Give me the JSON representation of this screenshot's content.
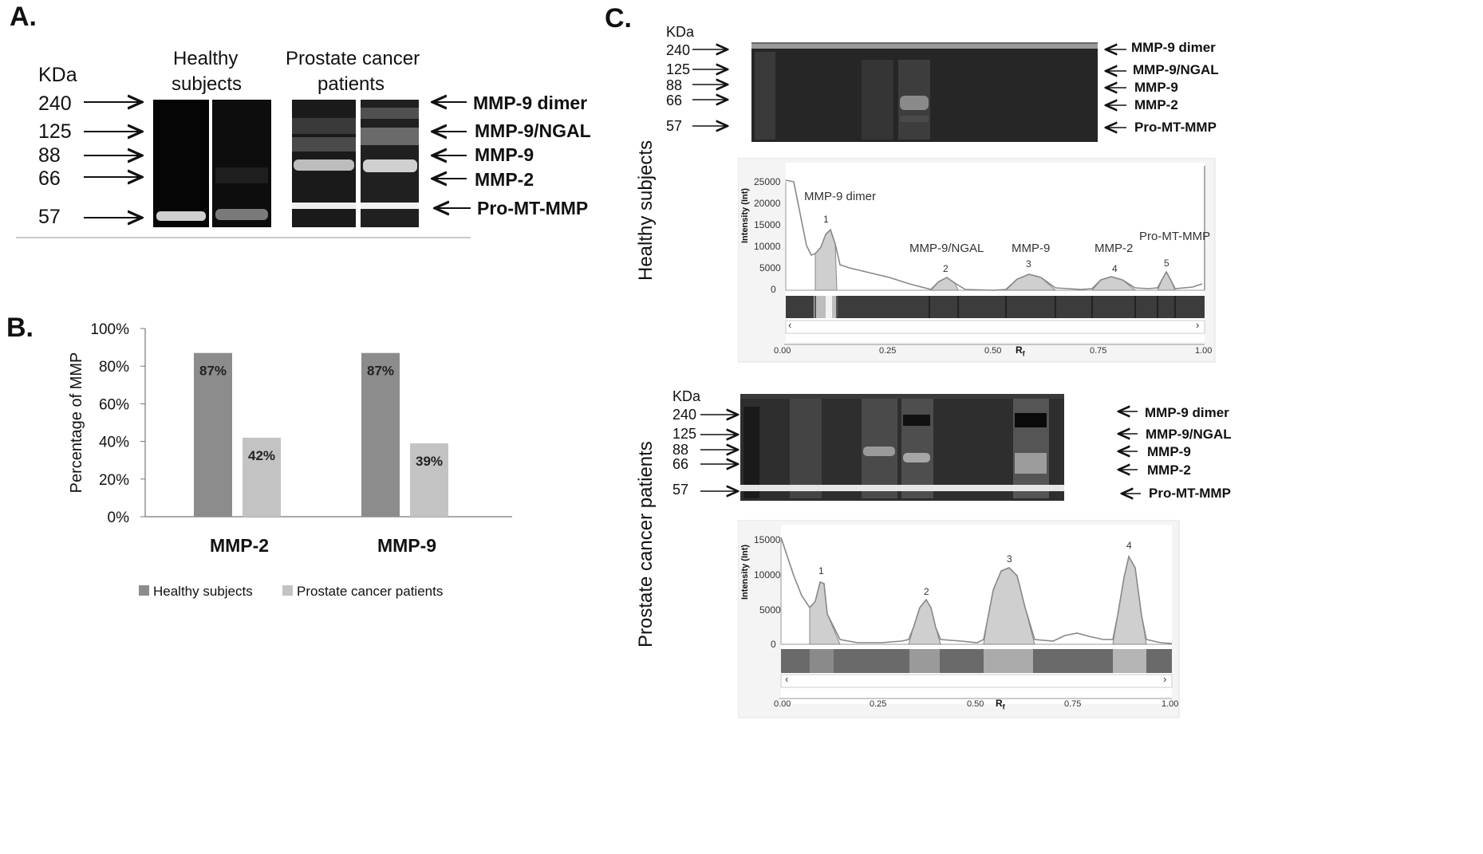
{
  "panels": {
    "a": "A.",
    "b": "B.",
    "c": "C."
  },
  "panel_a": {
    "unit": "KDa",
    "col1": [
      "Healthy",
      "subjects"
    ],
    "col2": [
      "Prostate cancer",
      "patients"
    ],
    "markers": [
      "240",
      "125",
      "88",
      "66",
      "57"
    ],
    "bands": [
      "MMP-9 dimer",
      "MMP-9/NGAL",
      "MMP-9",
      "MMP-2",
      "Pro-MT-MMP"
    ]
  },
  "chart_data": {
    "type": "bar",
    "categories": [
      "MMP-2",
      "MMP-9"
    ],
    "series": [
      {
        "name": "Healthy subjects",
        "values": [
          87,
          87
        ],
        "color": "#8c8c8c"
      },
      {
        "name": "Prostate cancer patients",
        "values": [
          42,
          39
        ],
        "color": "#c3c3c3"
      }
    ],
    "data_labels": [
      [
        "87%",
        "87%"
      ],
      [
        "42%",
        "39%"
      ]
    ],
    "ylabel": "Percentage of MMP",
    "ylim": [
      0,
      100
    ],
    "yticks": [
      "0%",
      "20%",
      "40%",
      "60%",
      "80%",
      "100%"
    ],
    "legend": "bottom",
    "grid": false
  },
  "panel_c": {
    "healthy": {
      "side_label": "Healthy subjects",
      "unit": "KDa",
      "markers": [
        "240",
        "125",
        "88",
        "66",
        "57"
      ],
      "bands": [
        "MMP-9 dimer",
        "MMP-9/NGAL",
        "MMP-9",
        "MMP-2",
        "Pro-MT-MMP"
      ],
      "profile": {
        "ylabel": "Intensity (Int)",
        "yticks": [
          "25000",
          "20000",
          "15000",
          "10000",
          "5000",
          "0"
        ],
        "xticks": [
          "0.00",
          "0.25",
          "0.50",
          "0.75",
          "1.00"
        ],
        "xlabel": "R",
        "xlabel_sub": "f",
        "peak_names": [
          "MMP-9 dimer",
          "MMP-9/NGAL",
          "MMP-9",
          "MMP-2",
          "Pro-MT-MMP"
        ],
        "peak_numbers": [
          "1",
          "2",
          "3",
          "4",
          "5"
        ],
        "scroll_left": "‹",
        "scroll_right": "›"
      }
    },
    "cancer": {
      "side_label": "Prostate cancer patients",
      "unit": "KDa",
      "markers": [
        "240",
        "125",
        "88",
        "66",
        "57"
      ],
      "bands": [
        "MMP-9 dimer",
        "MMP-9/NGAL",
        "MMP-9",
        "MMP-2",
        "Pro-MT-MMP"
      ],
      "profile": {
        "ylabel": "Intensity (Int)",
        "yticks": [
          "15000",
          "10000",
          "5000",
          "0"
        ],
        "xticks": [
          "0.00",
          "0.25",
          "0.50",
          "0.75",
          "1.00"
        ],
        "xlabel": "R",
        "xlabel_sub": "f",
        "peak_numbers": [
          "1",
          "2",
          "3",
          "4"
        ],
        "scroll_left": "‹",
        "scroll_right": "›"
      }
    }
  }
}
